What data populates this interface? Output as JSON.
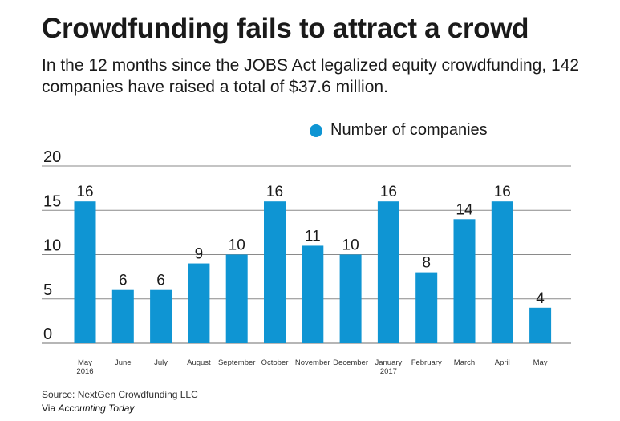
{
  "title": "Crowdfunding fails to attract a crowd",
  "subtitle": "In the 12 months since the JOBS Act legalized equity crowdfunding, 142 companies have raised a total of $37.6 million.",
  "source": "Source: NextGen Crowdfunding LLC",
  "via_prefix": "Via ",
  "via_name": "Accounting Today",
  "colors": {
    "bar": "#0f95d3",
    "grid": "#8a8a8a",
    "text": "#1a1a1a"
  },
  "chart_data": {
    "type": "bar",
    "legend": "Number of companies",
    "legend_position": "top",
    "grid": true,
    "ylim": [
      0,
      20
    ],
    "yticks": [
      0,
      5,
      10,
      15,
      20
    ],
    "categories": [
      "May",
      "June",
      "July",
      "August",
      "September",
      "October",
      "November",
      "December",
      "January",
      "February",
      "March",
      "April",
      "May"
    ],
    "category_sublabels": [
      "2016",
      "",
      "",
      "",
      "",
      "",
      "",
      "",
      "2017",
      "",
      "",
      "",
      ""
    ],
    "series": [
      {
        "name": "Number of companies",
        "values": [
          16,
          6,
          6,
          9,
          10,
          16,
          11,
          10,
          16,
          8,
          14,
          16,
          4
        ]
      }
    ]
  }
}
